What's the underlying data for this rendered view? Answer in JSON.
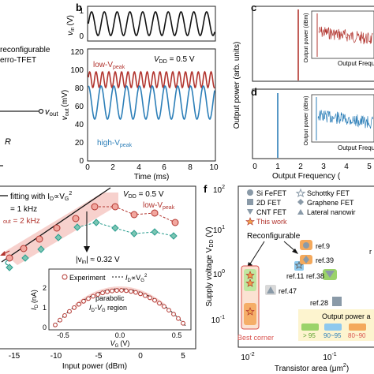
{
  "panels": {
    "a": {
      "label_lines": [
        "reconfigurable",
        "erro-TFET"
      ],
      "vout_label": "v",
      "vout_sub": "out",
      "r_label": "R"
    },
    "b": {
      "letter": "b",
      "top_ylabel": "v",
      "top_ylabel_sub": "in",
      "top_ylabel_unit": "(V)",
      "top_yticks": [
        "0",
        "1"
      ],
      "bottom_ylabel": "v",
      "bottom_ylabel_sub": "out",
      "bottom_ylabel_unit": "(mV)",
      "bottom_yticks": [
        "0",
        "20",
        "40",
        "60",
        "80",
        "100",
        "120"
      ],
      "xticks": [
        "0",
        "2",
        "4",
        "6",
        "8",
        "10"
      ],
      "xlabel": "Time (ms)",
      "vdd_label": "V",
      "vdd_sub": "DD",
      "vdd_value": " = 0.5 V",
      "low_label": "low-V",
      "low_sub": "peak",
      "high_label": "high-V",
      "high_sub": "peak"
    },
    "c": {
      "letter": "c",
      "inset_ylabel": "Output power (dBm)",
      "inset_xlabel": "Output Freque"
    },
    "d": {
      "letter": "d",
      "inset_ylabel": "Output power (dBm)",
      "inset_xlabel": "Output Frequ"
    },
    "cd": {
      "ylabel": "Output power (arb. units)",
      "xticks": [
        "0",
        "1",
        "2",
        "3",
        "4",
        "5"
      ],
      "xlabel": "Output Frequency ("
    },
    "e": {
      "legend_fit": "fitting with I",
      "legend_fit_sub": "D",
      "legend_fit_tail": "∝V",
      "legend_fit_sub2": "G",
      "legend_fit_sup": "2",
      "legend_f1": "= 1 kHz",
      "legend_f2_sub": "out",
      "legend_f2": " = 2 kHz",
      "vdd_label": "V",
      "vdd_sub": "DD",
      "vdd_value": " = 0.5 V",
      "low_label": "low-V",
      "low_sub": "peak",
      "vin_label": "|v",
      "vin_sub": "in",
      "vin_value": "| ≈ 0.32 V",
      "xticks": [
        "-15",
        "-10",
        "-5",
        "0",
        "5"
      ],
      "xlabel": "Input power (dBm)",
      "inset": {
        "ylabel": "I",
        "ylabel_sub": "D",
        "ylabel_unit": "(nA)",
        "yticks": [
          "0",
          "1",
          "2"
        ],
        "xticks": [
          "-0.5",
          "0.0",
          "0.5"
        ],
        "xlabel": "V",
        "xlabel_sub": "G",
        "xlabel_unit": "(V)",
        "legend_exp": "Experiment",
        "legend_fit": "I",
        "legend_fit_sub": "D",
        "legend_fit_tail": "∝V",
        "legend_fit_sub2": "G",
        "legend_fit_sup": "2",
        "parabolic": "parabolic",
        "region_a": "I",
        "region_a_sub": "D",
        "region_b": "-V",
        "region_b_sub": "G",
        "region_c": " region"
      }
    },
    "f": {
      "letter": "f",
      "ylabel": "Supply voltage V",
      "ylabel_sub": "DD",
      "ylabel_unit": " (V)",
      "yticks": [
        "10",
        "10",
        "10",
        "10"
      ],
      "ytick_exps": [
        "-1",
        "0",
        "1",
        "2"
      ],
      "xticks": [
        "10",
        "10"
      ],
      "xtick_exps": [
        "-2",
        "-1"
      ],
      "xlabel": "Transistor area (μm",
      "xlabel_sup": "2",
      "xlabel_tail": ")",
      "legend": [
        {
          "icon": "circle-icon",
          "label": "Si FeFET"
        },
        {
          "icon": "square-icon",
          "label": "2D FET"
        },
        {
          "icon": "triangle-down-icon",
          "label": "CNT FET"
        },
        {
          "icon": "star-icon",
          "label": "This work"
        },
        {
          "icon": "star-outline-icon",
          "label": "Schottky FET"
        },
        {
          "icon": "diamond-icon",
          "label": "Graphene FET"
        },
        {
          "icon": "triangle-up-icon",
          "label": "Lateral nanowir"
        }
      ],
      "reconfigurable": "Reconfigurable",
      "refs": [
        "ref.9",
        "ref.39",
        "ref.11",
        "ref.38",
        "ref.47",
        "ref.28"
      ],
      "best_corner": "Best corner",
      "output_power_title": "Output power a",
      "output_bins": [
        "> 95",
        "90~95",
        "80~90"
      ],
      "right_edge_letter": "r"
    }
  },
  "colors": {
    "red": "#b2352f",
    "red_light": "#f6c9c4",
    "blue": "#2d7fb8",
    "teal": "#2a9d8f",
    "orange": "#f0a04a",
    "green_bin": "#9bd36a",
    "blue_bin": "#8ec9ee",
    "orange_bin": "#f4a95c",
    "gray": "#8a9aa8"
  }
}
